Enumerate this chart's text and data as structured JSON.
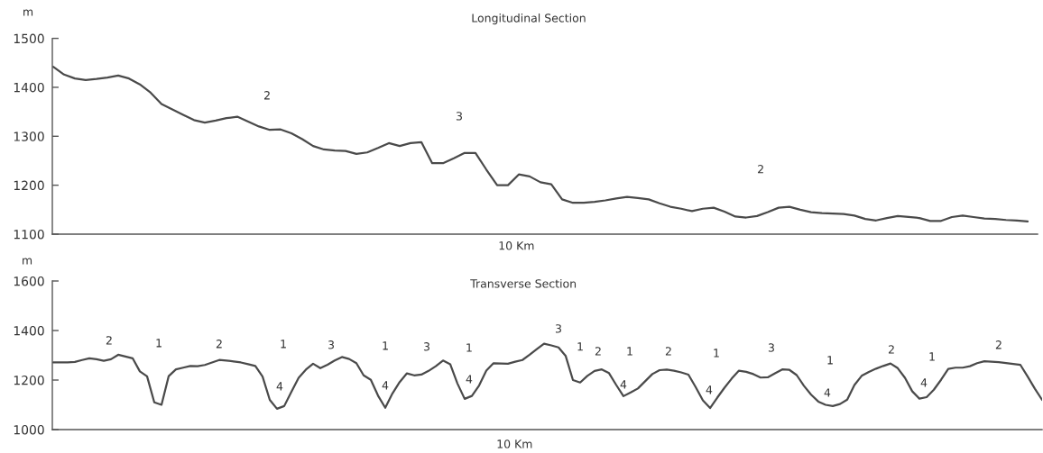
{
  "chart_data": [
    {
      "type": "line",
      "title": "Longitudinal Section",
      "xlabel": "10 Km",
      "ylabel": "m",
      "categories": [
        null,
        null,
        null,
        null,
        null,
        null,
        null,
        null,
        null,
        null,
        null,
        null,
        null,
        null,
        null,
        null,
        null,
        null,
        null,
        null,
        null,
        null,
        null,
        null,
        null,
        null,
        null,
        null,
        null,
        null,
        null,
        null,
        null,
        null,
        null,
        null,
        null,
        null,
        null,
        null,
        null,
        null,
        null,
        null,
        null,
        null,
        null,
        null,
        null,
        null,
        null,
        null,
        null,
        null,
        null,
        null,
        null,
        null,
        null,
        null,
        null,
        null,
        null,
        null,
        null,
        null,
        null,
        null,
        null,
        null,
        null,
        null,
        null,
        null,
        null,
        null,
        null,
        null,
        null,
        null,
        null,
        null,
        null,
        null,
        null,
        null,
        null,
        null,
        null,
        null,
        null
      ],
      "series": [
        {
          "color": "#4a4a4a",
          "values": [
            1442,
            1426,
            1418,
            1415,
            1417,
            1420,
            1424,
            1418,
            1406,
            1389,
            1366,
            1355,
            1344,
            1333,
            1328,
            1332,
            1337,
            1340,
            1330,
            1320,
            1313,
            1314,
            1306,
            1294,
            1280,
            1273,
            1271,
            1270,
            1264,
            1267,
            1276,
            1286,
            1280,
            1286,
            1288,
            1245,
            1245,
            1255,
            1266,
            1266,
            1232,
            1200,
            1200,
            1222,
            1218,
            1206,
            1202,
            1171,
            1164,
            1164,
            1166,
            1169,
            1173,
            1176,
            1174,
            1171,
            1163,
            1156,
            1152,
            1147,
            1152,
            1154,
            1146,
            1136,
            1134,
            1137,
            1145,
            1154,
            1156,
            1150,
            1145,
            1143,
            1142,
            1141,
            1138,
            1131,
            1128,
            1133,
            1137,
            1135,
            1133,
            1127,
            1127,
            1135,
            1138,
            1135,
            1132,
            1131,
            1129,
            1128,
            1126
          ]
        }
      ],
      "ylim": [
        1100,
        1500
      ],
      "yticks": [
        1100,
        1200,
        1300,
        1400,
        1500
      ],
      "tick_labels": "y",
      "annotations": [
        "2",
        "3",
        "2"
      ]
    },
    {
      "type": "line",
      "title": "Transverse Section",
      "xlabel": "10 Km",
      "ylabel": "m",
      "categories": [
        null,
        null,
        null,
        null,
        null,
        null,
        null,
        null,
        null,
        null,
        null,
        null,
        null,
        null,
        null,
        null,
        null,
        null,
        null,
        null,
        null,
        null,
        null,
        null,
        null,
        null,
        null,
        null,
        null,
        null,
        null,
        null,
        null,
        null,
        null,
        null,
        null,
        null,
        null,
        null,
        null,
        null,
        null,
        null,
        null,
        null,
        null,
        null,
        null,
        null,
        null,
        null,
        null,
        null,
        null,
        null,
        null,
        null,
        null,
        null,
        null,
        null,
        null,
        null,
        null,
        null,
        null,
        null,
        null,
        null,
        null,
        null,
        null,
        null,
        null,
        null,
        null,
        null,
        null,
        null,
        null,
        null,
        null,
        null,
        null,
        null,
        null,
        null,
        null,
        null,
        null,
        null,
        null,
        null,
        null,
        null,
        null,
        null,
        null,
        null,
        null,
        null,
        null,
        null,
        null,
        null,
        null,
        null,
        null,
        null,
        null,
        null,
        null,
        null,
        null,
        null,
        null,
        null,
        null,
        null,
        null,
        null,
        null,
        null,
        null,
        null,
        null,
        null,
        null,
        null,
        null,
        null,
        null,
        null,
        null,
        null,
        null,
        null
      ],
      "series": [
        {
          "color": "#4a4a4a",
          "values": [
            1271,
            1271,
            1271,
            1273,
            1281,
            1288,
            1284,
            1278,
            1284,
            1302,
            1295,
            1288,
            1235,
            1215,
            1110,
            1100,
            1216,
            1243,
            1250,
            1257,
            1256,
            1261,
            1271,
            1281,
            1279,
            1275,
            1271,
            1264,
            1257,
            1214,
            1120,
            1084,
            1095,
            1153,
            1209,
            1242,
            1266,
            1248,
            1262,
            1279,
            1293,
            1285,
            1268,
            1219,
            1201,
            1137,
            1088,
            1146,
            1192,
            1227,
            1219,
            1222,
            1237,
            1256,
            1279,
            1264,
            1186,
            1124,
            1136,
            1178,
            1238,
            1268,
            1267,
            1266,
            1274,
            1281,
            1302,
            1325,
            1347,
            1340,
            1332,
            1297,
            1200,
            1190,
            1217,
            1237,
            1243,
            1228,
            1180,
            1135,
            1150,
            1166,
            1195,
            1224,
            1240,
            1242,
            1238,
            1231,
            1222,
            1172,
            1118,
            1087,
            1129,
            1169,
            1206,
            1238,
            1233,
            1224,
            1210,
            1211,
            1227,
            1243,
            1241,
            1220,
            1177,
            1141,
            1113,
            1100,
            1095,
            1103,
            1121,
            1180,
            1217,
            1233,
            1246,
            1257,
            1267,
            1248,
            1209,
            1155,
            1125,
            1131,
            1161,
            1201,
            1245,
            1250,
            1250,
            1256,
            1268,
            1276,
            1274,
            1272,
            1269,
            1265,
            1261,
            1214,
            1165,
            1120
          ]
        }
      ],
      "ylim": [
        1000,
        1600
      ],
      "yticks": [
        1000,
        1200,
        1400,
        1600
      ],
      "tick_labels": "y",
      "annotations": [
        "2",
        "1",
        "2",
        "1",
        "4",
        "3",
        "1",
        "4",
        "3",
        "1",
        "4",
        "3",
        "1",
        "2",
        "1",
        "4",
        "2",
        "1",
        "4",
        "3",
        "1",
        "4",
        "2",
        "1",
        "4",
        "2"
      ]
    }
  ]
}
